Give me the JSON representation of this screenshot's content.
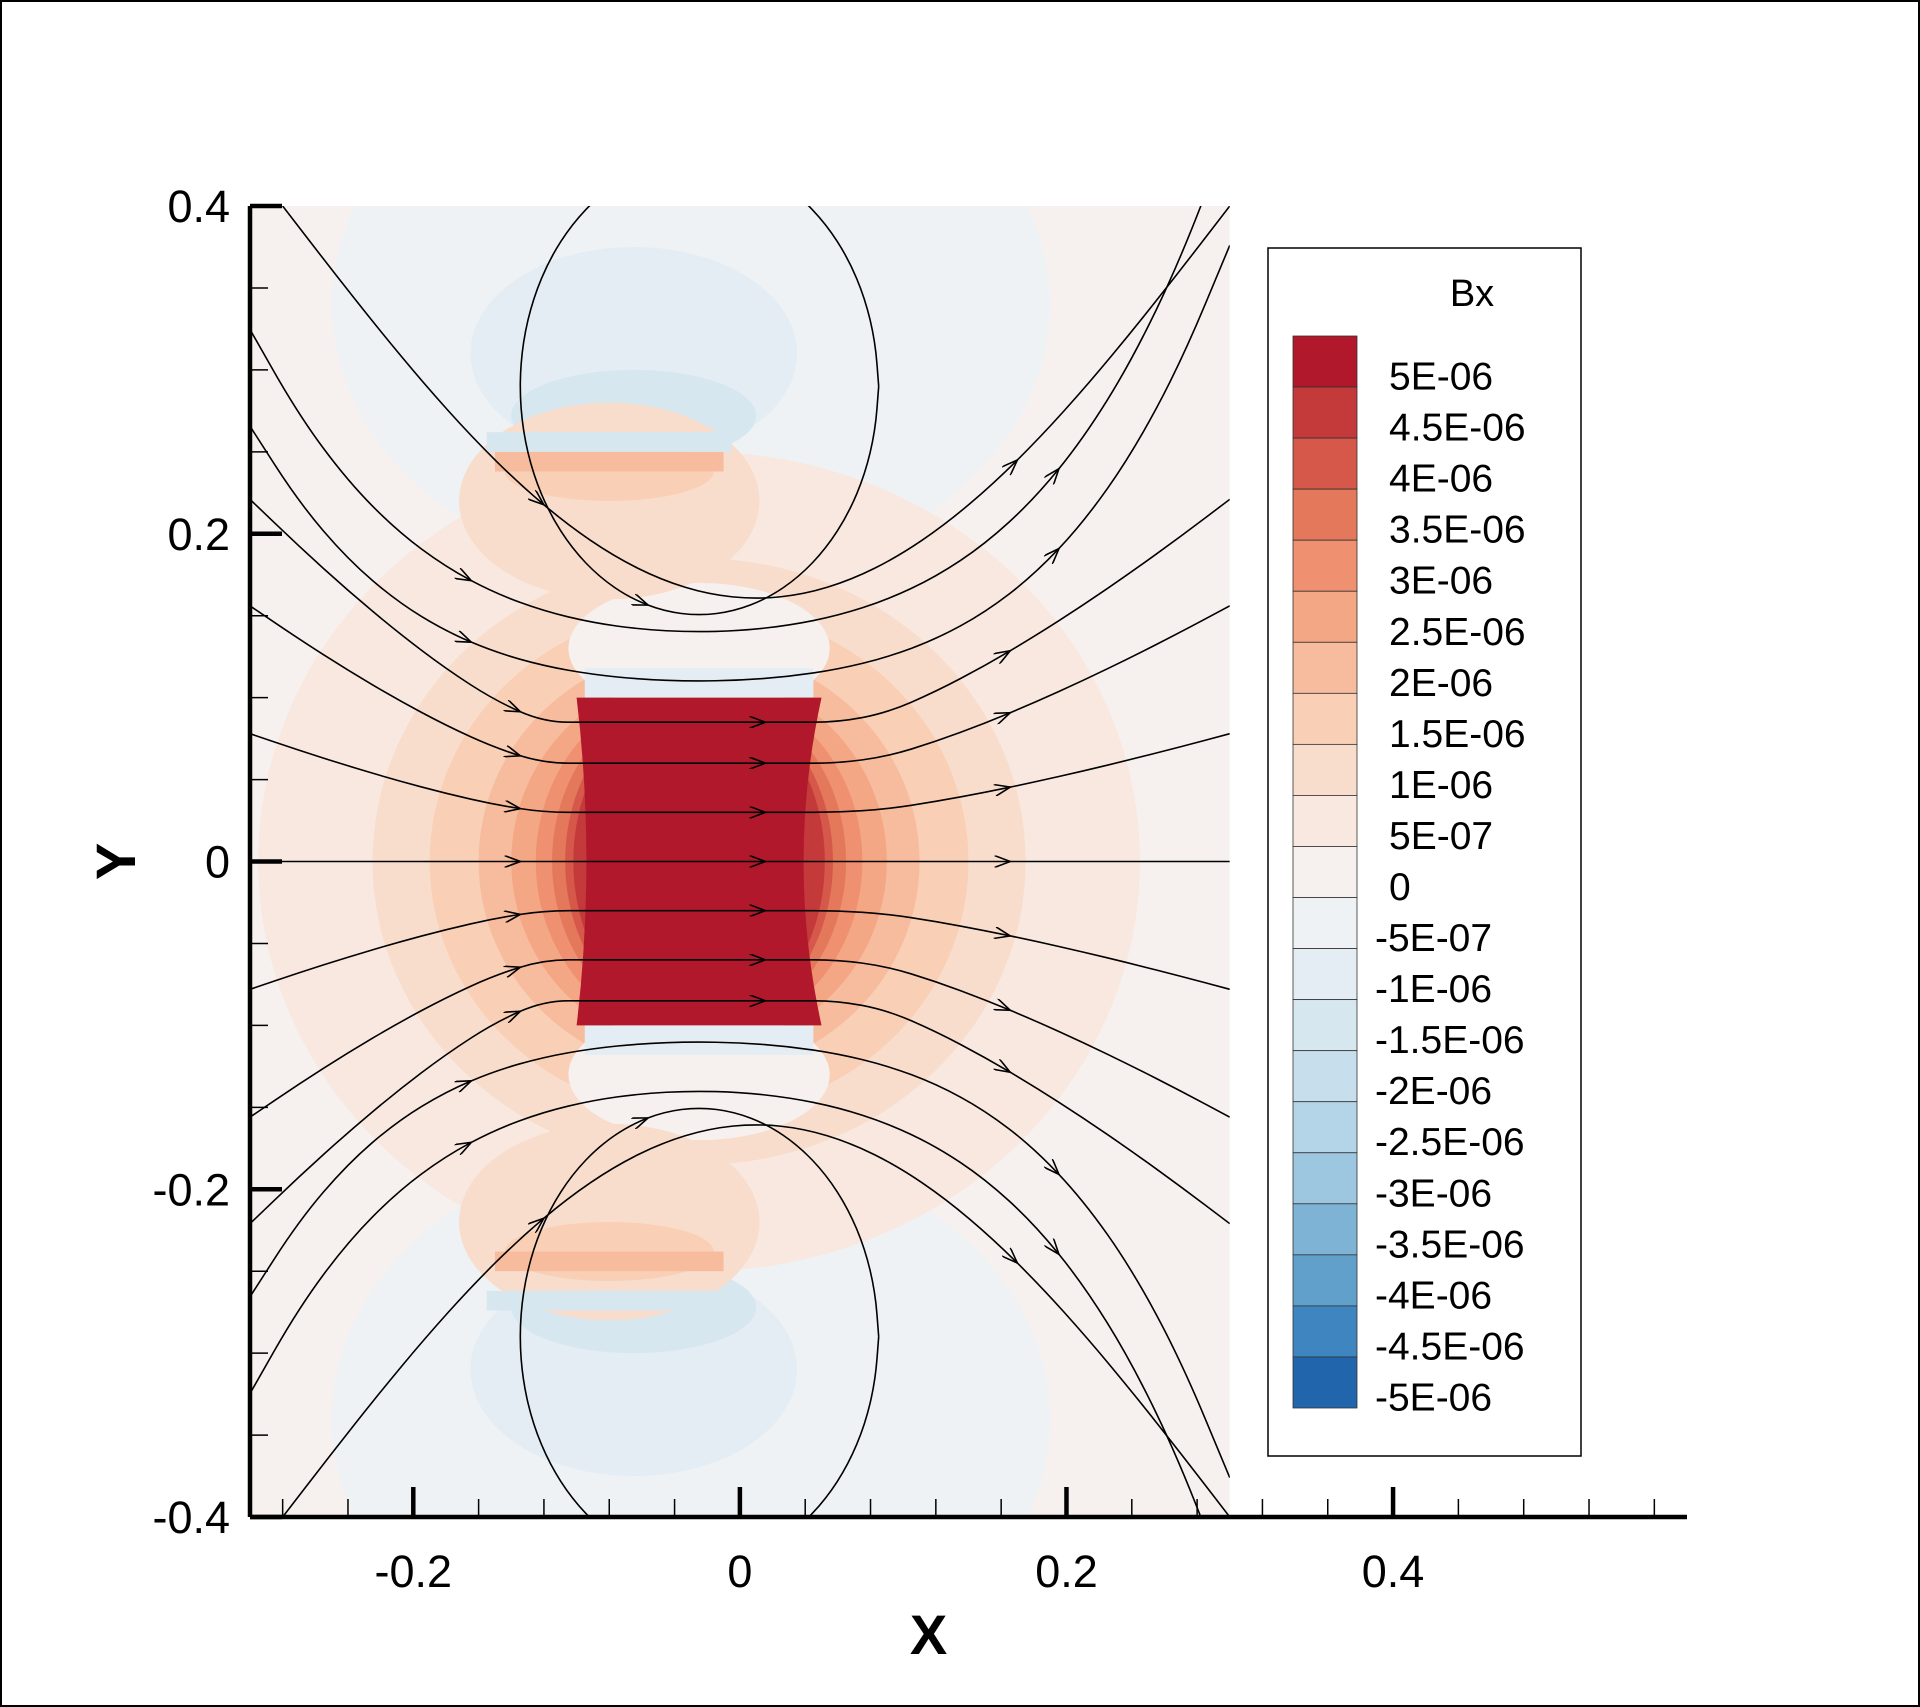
{
  "chart_data": {
    "type": "contour",
    "variable": "Bx",
    "xlabel": "X",
    "ylabel": "Y",
    "xlim": [
      -0.3,
      0.58
    ],
    "ylim": [
      -0.4,
      0.4
    ],
    "field_xlim": [
      -0.3,
      0.3
    ],
    "x_ticks": [
      {
        "value": -0.2,
        "label": "-0.2"
      },
      {
        "value": 0,
        "label": "0"
      },
      {
        "value": 0.2,
        "label": "0.2"
      },
      {
        "value": 0.4,
        "label": "0.4"
      }
    ],
    "y_ticks": [
      {
        "value": 0.4,
        "label": "0.4"
      },
      {
        "value": 0.2,
        "label": "0.2"
      },
      {
        "value": 0,
        "label": "0"
      },
      {
        "value": -0.2,
        "label": "-0.2"
      },
      {
        "value": -0.4,
        "label": "-0.4"
      }
    ],
    "magnet": {
      "x": [
        -0.1,
        0.05
      ],
      "y": [
        -0.1,
        0.1
      ]
    },
    "side_bars": [
      {
        "x": [
          -0.16,
          0.0
        ],
        "y": 0.25
      },
      {
        "x": [
          -0.16,
          0.0
        ],
        "y": -0.25
      }
    ],
    "legend": {
      "title": "Bx",
      "placement": "right",
      "levels": [
        {
          "label": "5E-06",
          "color": "#b2182b"
        },
        {
          "label": "4.5E-06",
          "color": "#c43a3a"
        },
        {
          "label": "4E-06",
          "color": "#d5584a"
        },
        {
          "label": "3.5E-06",
          "color": "#e4785b"
        },
        {
          "label": "3E-06",
          "color": "#ef9070"
        },
        {
          "label": "2.5E-06",
          "color": "#f4a784"
        },
        {
          "label": "2E-06",
          "color": "#f7bc9e"
        },
        {
          "label": "1.5E-06",
          "color": "#f9cfb6"
        },
        {
          "label": "1E-06",
          "color": "#f9ddcc"
        },
        {
          "label": "5E-07",
          "color": "#f8e8e0"
        },
        {
          "label": "0",
          "color": "#f6f1ee"
        },
        {
          "label": "-5E-07",
          "color": "#eef2f5"
        },
        {
          "label": "-1E-06",
          "color": "#e3edf3"
        },
        {
          "label": "-1.5E-06",
          "color": "#d7e7f0"
        },
        {
          "label": "-2E-06",
          "color": "#c7deec"
        },
        {
          "label": "-2.5E-06",
          "color": "#b4d4e8"
        },
        {
          "label": "-3E-06",
          "color": "#9dc6e0"
        },
        {
          "label": "-3.5E-06",
          "color": "#7fb3d6"
        },
        {
          "label": "-4E-06",
          "color": "#62a0cc"
        },
        {
          "label": "-4.5E-06",
          "color": "#3f85c0"
        },
        {
          "label": "-5E-06",
          "color": "#2166ac"
        }
      ]
    },
    "streamlines": "magnetic field lines of a bar magnet magnetized along +x, with closed loops around the upper and lower return regions"
  }
}
